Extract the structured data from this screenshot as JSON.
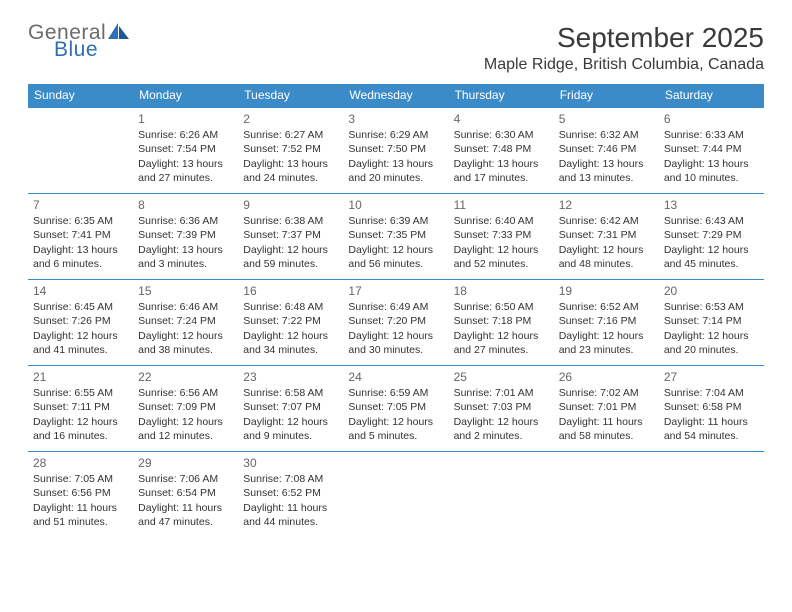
{
  "brand": {
    "part1": "General",
    "part2": "Blue",
    "color1": "#6b6b6b",
    "color2": "#2f6fb3"
  },
  "title": "September 2025",
  "location": "Maple Ridge, British Columbia, Canada",
  "header_bg": "#3b8bc8",
  "header_fg": "#ffffff",
  "border_color": "#3b8bc8",
  "days_of_week": [
    "Sunday",
    "Monday",
    "Tuesday",
    "Wednesday",
    "Thursday",
    "Friday",
    "Saturday"
  ],
  "start_offset": 1,
  "cells": [
    {
      "n": "1",
      "sr": "6:26 AM",
      "ss": "7:54 PM",
      "dl": "13 hours and 27 minutes."
    },
    {
      "n": "2",
      "sr": "6:27 AM",
      "ss": "7:52 PM",
      "dl": "13 hours and 24 minutes."
    },
    {
      "n": "3",
      "sr": "6:29 AM",
      "ss": "7:50 PM",
      "dl": "13 hours and 20 minutes."
    },
    {
      "n": "4",
      "sr": "6:30 AM",
      "ss": "7:48 PM",
      "dl": "13 hours and 17 minutes."
    },
    {
      "n": "5",
      "sr": "6:32 AM",
      "ss": "7:46 PM",
      "dl": "13 hours and 13 minutes."
    },
    {
      "n": "6",
      "sr": "6:33 AM",
      "ss": "7:44 PM",
      "dl": "13 hours and 10 minutes."
    },
    {
      "n": "7",
      "sr": "6:35 AM",
      "ss": "7:41 PM",
      "dl": "13 hours and 6 minutes."
    },
    {
      "n": "8",
      "sr": "6:36 AM",
      "ss": "7:39 PM",
      "dl": "13 hours and 3 minutes."
    },
    {
      "n": "9",
      "sr": "6:38 AM",
      "ss": "7:37 PM",
      "dl": "12 hours and 59 minutes."
    },
    {
      "n": "10",
      "sr": "6:39 AM",
      "ss": "7:35 PM",
      "dl": "12 hours and 56 minutes."
    },
    {
      "n": "11",
      "sr": "6:40 AM",
      "ss": "7:33 PM",
      "dl": "12 hours and 52 minutes."
    },
    {
      "n": "12",
      "sr": "6:42 AM",
      "ss": "7:31 PM",
      "dl": "12 hours and 48 minutes."
    },
    {
      "n": "13",
      "sr": "6:43 AM",
      "ss": "7:29 PM",
      "dl": "12 hours and 45 minutes."
    },
    {
      "n": "14",
      "sr": "6:45 AM",
      "ss": "7:26 PM",
      "dl": "12 hours and 41 minutes."
    },
    {
      "n": "15",
      "sr": "6:46 AM",
      "ss": "7:24 PM",
      "dl": "12 hours and 38 minutes."
    },
    {
      "n": "16",
      "sr": "6:48 AM",
      "ss": "7:22 PM",
      "dl": "12 hours and 34 minutes."
    },
    {
      "n": "17",
      "sr": "6:49 AM",
      "ss": "7:20 PM",
      "dl": "12 hours and 30 minutes."
    },
    {
      "n": "18",
      "sr": "6:50 AM",
      "ss": "7:18 PM",
      "dl": "12 hours and 27 minutes."
    },
    {
      "n": "19",
      "sr": "6:52 AM",
      "ss": "7:16 PM",
      "dl": "12 hours and 23 minutes."
    },
    {
      "n": "20",
      "sr": "6:53 AM",
      "ss": "7:14 PM",
      "dl": "12 hours and 20 minutes."
    },
    {
      "n": "21",
      "sr": "6:55 AM",
      "ss": "7:11 PM",
      "dl": "12 hours and 16 minutes."
    },
    {
      "n": "22",
      "sr": "6:56 AM",
      "ss": "7:09 PM",
      "dl": "12 hours and 12 minutes."
    },
    {
      "n": "23",
      "sr": "6:58 AM",
      "ss": "7:07 PM",
      "dl": "12 hours and 9 minutes."
    },
    {
      "n": "24",
      "sr": "6:59 AM",
      "ss": "7:05 PM",
      "dl": "12 hours and 5 minutes."
    },
    {
      "n": "25",
      "sr": "7:01 AM",
      "ss": "7:03 PM",
      "dl": "12 hours and 2 minutes."
    },
    {
      "n": "26",
      "sr": "7:02 AM",
      "ss": "7:01 PM",
      "dl": "11 hours and 58 minutes."
    },
    {
      "n": "27",
      "sr": "7:04 AM",
      "ss": "6:58 PM",
      "dl": "11 hours and 54 minutes."
    },
    {
      "n": "28",
      "sr": "7:05 AM",
      "ss": "6:56 PM",
      "dl": "11 hours and 51 minutes."
    },
    {
      "n": "29",
      "sr": "7:06 AM",
      "ss": "6:54 PM",
      "dl": "11 hours and 47 minutes."
    },
    {
      "n": "30",
      "sr": "7:08 AM",
      "ss": "6:52 PM",
      "dl": "11 hours and 44 minutes."
    }
  ],
  "labels": {
    "sunrise": "Sunrise:",
    "sunset": "Sunset:",
    "daylight": "Daylight:"
  }
}
